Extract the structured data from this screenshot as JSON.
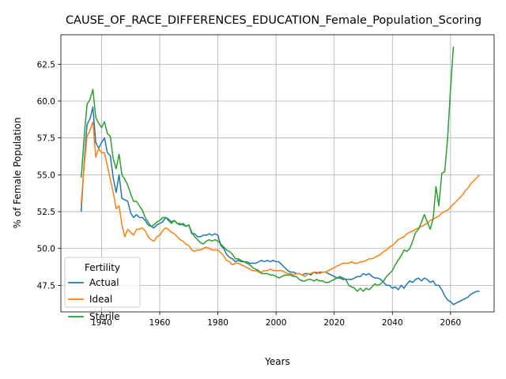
{
  "chart_data": {
    "type": "line",
    "title": "CAUSE_OF_RACE_DIFFERENCES_EDUCATION_Female_Population_Scoring",
    "xlabel": "Years",
    "ylabel": "% of Female Population",
    "xlim": [
      1926,
      2075
    ],
    "ylim": [
      45.7,
      64.5
    ],
    "xticks": [
      1940,
      1960,
      1980,
      2000,
      2020,
      2040,
      2060
    ],
    "yticks": [
      47.5,
      50.0,
      52.5,
      55.0,
      57.5,
      60.0,
      62.5
    ],
    "xtick_labels": [
      "1940",
      "1960",
      "1980",
      "2000",
      "2020",
      "2040",
      "2060"
    ],
    "ytick_labels": [
      "47.5",
      "50.0",
      "52.5",
      "55.0",
      "57.5",
      "60.0",
      "62.5"
    ],
    "grid": true,
    "legend": {
      "title": "Fertility",
      "placement": "lower-left"
    },
    "series": [
      {
        "name": "Actual",
        "color": "#1f77b4",
        "x": [
          1933,
          1934,
          1935,
          1936,
          1937,
          1938,
          1939,
          1940,
          1941,
          1942,
          1943,
          1944,
          1945,
          1946,
          1947,
          1948,
          1949,
          1950,
          1951,
          1952,
          1953,
          1954,
          1955,
          1956,
          1957,
          1958,
          1959,
          1960,
          1961,
          1962,
          1963,
          1964,
          1965,
          1966,
          1967,
          1968,
          1969,
          1970,
          1971,
          1972,
          1973,
          1974,
          1975,
          1976,
          1977,
          1978,
          1979,
          1980,
          1981,
          1982,
          1983,
          1984,
          1985,
          1986,
          1987,
          1988,
          1989,
          1990,
          1991,
          1992,
          1993,
          1994,
          1995,
          1996,
          1997,
          1998,
          1999,
          2000,
          2001,
          2002,
          2003,
          2004,
          2005,
          2006,
          2007,
          2008,
          2009,
          2010,
          2011,
          2012,
          2013,
          2014,
          2015,
          2016,
          2017,
          2018,
          2019,
          2020,
          2021,
          2022,
          2023,
          2024,
          2025,
          2026,
          2027,
          2028,
          2029,
          2030,
          2031,
          2032,
          2033,
          2034,
          2035,
          2036,
          2037,
          2038,
          2039,
          2040,
          2041,
          2042,
          2043,
          2044,
          2045,
          2046,
          2047,
          2048,
          2049,
          2050,
          2051,
          2052,
          2053,
          2054,
          2055,
          2056,
          2057,
          2058,
          2059,
          2060,
          2061,
          2062,
          2063,
          2064,
          2065,
          2066,
          2067,
          2068,
          2069,
          2070
        ],
        "y": [
          52.5,
          55.8,
          58.4,
          58.8,
          59.6,
          57.2,
          56.8,
          57.2,
          57.5,
          56.5,
          56.3,
          54.8,
          53.8,
          55.0,
          53.4,
          53.3,
          53.2,
          52.4,
          52.1,
          52.3,
          52.1,
          52.1,
          51.9,
          51.6,
          51.5,
          51.4,
          51.6,
          51.7,
          51.8,
          52.1,
          52.0,
          51.8,
          51.9,
          51.7,
          51.6,
          51.7,
          51.5,
          51.6,
          51.0,
          51.0,
          50.8,
          50.8,
          50.9,
          50.9,
          51.0,
          50.9,
          51.0,
          50.9,
          50.2,
          50.0,
          49.6,
          49.4,
          49.3,
          49.1,
          49.2,
          49.1,
          49.1,
          49.1,
          49.0,
          49.0,
          49.0,
          49.1,
          49.2,
          49.1,
          49.2,
          49.1,
          49.2,
          49.1,
          49.1,
          48.9,
          48.7,
          48.5,
          48.4,
          48.4,
          48.3,
          48.3,
          48.2,
          48.3,
          48.3,
          48.2,
          48.4,
          48.3,
          48.4,
          48.4,
          48.4,
          48.3,
          48.2,
          48.1,
          48.0,
          48.0,
          47.9,
          47.9,
          47.9,
          47.9,
          48.0,
          48.1,
          48.1,
          48.3,
          48.2,
          48.3,
          48.1,
          48.0,
          48.0,
          47.9,
          47.7,
          47.5,
          47.5,
          47.3,
          47.4,
          47.2,
          47.5,
          47.3,
          47.6,
          47.8,
          47.7,
          47.9,
          48.0,
          47.8,
          48.0,
          47.9,
          47.7,
          47.8,
          47.5,
          47.5,
          47.2,
          46.8,
          46.5,
          46.4,
          46.2,
          46.3,
          46.4,
          46.5,
          46.6,
          46.7,
          46.9,
          47.0,
          47.1,
          47.1
        ]
      },
      {
        "name": "Ideal",
        "color": "#ff7f0e",
        "x": [
          1933,
          1934,
          1935,
          1936,
          1937,
          1938,
          1939,
          1940,
          1941,
          1942,
          1943,
          1944,
          1945,
          1946,
          1947,
          1948,
          1949,
          1950,
          1951,
          1952,
          1953,
          1954,
          1955,
          1956,
          1957,
          1958,
          1959,
          1960,
          1961,
          1962,
          1963,
          1964,
          1965,
          1966,
          1967,
          1968,
          1969,
          1970,
          1971,
          1972,
          1973,
          1974,
          1975,
          1976,
          1977,
          1978,
          1979,
          1980,
          1981,
          1982,
          1983,
          1984,
          1985,
          1986,
          1987,
          1988,
          1989,
          1990,
          1991,
          1992,
          1993,
          1994,
          1995,
          1996,
          1997,
          1998,
          1999,
          2000,
          2001,
          2002,
          2003,
          2004,
          2005,
          2006,
          2007,
          2008,
          2009,
          2010,
          2011,
          2012,
          2013,
          2014,
          2015,
          2016,
          2017,
          2018,
          2019,
          2020,
          2021,
          2022,
          2023,
          2024,
          2025,
          2026,
          2027,
          2028,
          2029,
          2030,
          2031,
          2032,
          2033,
          2034,
          2035,
          2036,
          2037,
          2038,
          2039,
          2040,
          2041,
          2042,
          2043,
          2044,
          2045,
          2046,
          2047,
          2048,
          2049,
          2050,
          2051,
          2052,
          2053,
          2054,
          2055,
          2056,
          2057,
          2058,
          2059,
          2060,
          2061,
          2062,
          2063,
          2064,
          2065,
          2066,
          2067,
          2068,
          2069,
          2070
        ],
        "y": [
          53.0,
          55.6,
          57.6,
          58.0,
          58.6,
          56.2,
          56.8,
          56.5,
          56.5,
          55.6,
          54.7,
          53.8,
          52.7,
          52.9,
          51.6,
          50.8,
          51.3,
          51.1,
          50.9,
          51.3,
          51.3,
          51.4,
          51.2,
          50.8,
          50.6,
          50.5,
          50.8,
          50.9,
          51.2,
          51.4,
          51.3,
          51.1,
          51.0,
          50.8,
          50.6,
          50.5,
          50.3,
          50.2,
          49.9,
          49.8,
          49.9,
          49.9,
          50.0,
          50.1,
          50.0,
          49.9,
          49.9,
          49.9,
          49.7,
          49.5,
          49.2,
          49.1,
          48.9,
          49.0,
          49.0,
          48.9,
          48.8,
          48.7,
          48.6,
          48.5,
          48.5,
          48.4,
          48.4,
          48.5,
          48.5,
          48.6,
          48.5,
          48.5,
          48.5,
          48.5,
          48.4,
          48.3,
          48.3,
          48.2,
          48.3,
          48.3,
          48.2,
          48.1,
          48.3,
          48.3,
          48.4,
          48.4,
          48.3,
          48.4,
          48.4,
          48.5,
          48.6,
          48.7,
          48.8,
          48.9,
          49.0,
          49.0,
          49.0,
          49.1,
          49.0,
          49.0,
          49.1,
          49.1,
          49.2,
          49.3,
          49.3,
          49.4,
          49.5,
          49.6,
          49.8,
          49.9,
          50.1,
          50.2,
          50.4,
          50.6,
          50.7,
          50.8,
          51.0,
          51.1,
          51.2,
          51.3,
          51.4,
          51.5,
          51.6,
          51.7,
          51.9,
          52.0,
          52.1,
          52.2,
          52.4,
          52.5,
          52.6,
          52.8,
          53.0,
          53.2,
          53.4,
          53.6,
          53.9,
          54.1,
          54.4,
          54.6,
          54.8,
          55.0
        ]
      },
      {
        "name": "Sterile",
        "color": "#2ca02c",
        "x": [
          1933,
          1934,
          1935,
          1936,
          1937,
          1938,
          1939,
          1940,
          1941,
          1942,
          1943,
          1944,
          1945,
          1946,
          1947,
          1948,
          1949,
          1950,
          1951,
          1952,
          1953,
          1954,
          1955,
          1956,
          1957,
          1958,
          1959,
          1960,
          1961,
          1962,
          1963,
          1964,
          1965,
          1966,
          1967,
          1968,
          1969,
          1970,
          1971,
          1972,
          1973,
          1974,
          1975,
          1976,
          1977,
          1978,
          1979,
          1980,
          1981,
          1982,
          1983,
          1984,
          1985,
          1986,
          1987,
          1988,
          1989,
          1990,
          1991,
          1992,
          1993,
          1994,
          1995,
          1996,
          1997,
          1998,
          1999,
          2000,
          2001,
          2002,
          2003,
          2004,
          2005,
          2006,
          2007,
          2008,
          2009,
          2010,
          2011,
          2012,
          2013,
          2014,
          2015,
          2016,
          2017,
          2018,
          2019,
          2020,
          2021,
          2022,
          2023,
          2024,
          2025,
          2026,
          2027,
          2028,
          2029,
          2030,
          2031,
          2032,
          2033,
          2034,
          2035,
          2036,
          2037,
          2038,
          2039,
          2040,
          2041,
          2042,
          2043,
          2044,
          2045,
          2046,
          2047,
          2048,
          2049,
          2050,
          2051,
          2052,
          2053,
          2054,
          2055,
          2056,
          2057,
          2058,
          2059,
          2060,
          2061
        ],
        "y": [
          54.8,
          57.5,
          59.8,
          60.1,
          60.8,
          58.9,
          58.5,
          58.2,
          58.6,
          57.8,
          57.6,
          56.1,
          55.4,
          56.4,
          55.0,
          54.7,
          54.3,
          53.7,
          53.2,
          53.2,
          52.9,
          52.6,
          52.1,
          51.8,
          51.5,
          51.6,
          51.8,
          51.9,
          52.1,
          52.1,
          51.9,
          51.7,
          51.9,
          51.7,
          51.7,
          51.6,
          51.5,
          51.6,
          51.1,
          50.8,
          50.6,
          50.4,
          50.3,
          50.5,
          50.6,
          50.5,
          50.6,
          50.5,
          50.3,
          50.1,
          49.9,
          49.8,
          49.6,
          49.3,
          49.3,
          49.2,
          49.1,
          49.0,
          48.9,
          48.7,
          48.6,
          48.5,
          48.3,
          48.3,
          48.3,
          48.2,
          48.2,
          48.1,
          48.0,
          48.1,
          48.2,
          48.2,
          48.2,
          48.1,
          48.1,
          47.9,
          47.8,
          47.8,
          47.9,
          47.9,
          47.8,
          47.9,
          47.8,
          47.8,
          47.7,
          47.7,
          47.8,
          47.9,
          48.0,
          48.1,
          48.0,
          47.9,
          47.5,
          47.4,
          47.3,
          47.1,
          47.3,
          47.1,
          47.3,
          47.2,
          47.4,
          47.6,
          47.5,
          47.6,
          47.8,
          48.1,
          48.3,
          48.5,
          48.9,
          49.2,
          49.5,
          49.9,
          49.8,
          50.0,
          50.5,
          51.1,
          51.3,
          51.8,
          52.3,
          51.8,
          51.3,
          52.0,
          54.2,
          52.9,
          55.1,
          55.2,
          57.5,
          60.8,
          63.7
        ]
      }
    ]
  }
}
